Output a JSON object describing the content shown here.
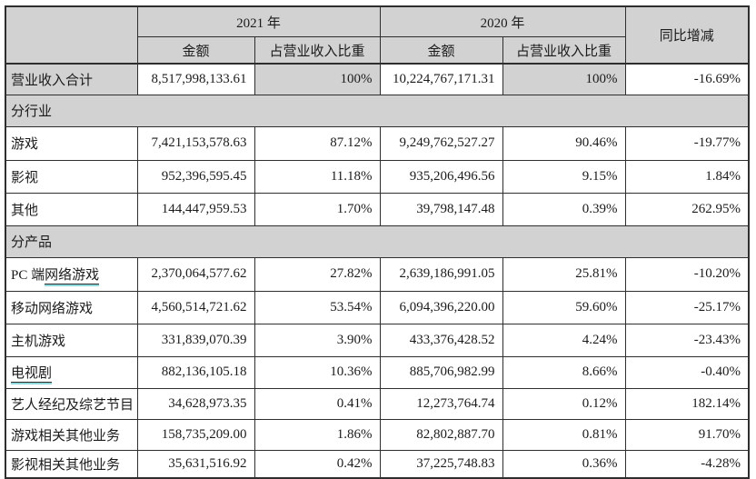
{
  "colors": {
    "shade": "#d2d2d2",
    "border": "#2e2e2e",
    "text": "#1b1b1b",
    "teal": "#8fd8dc"
  },
  "table": {
    "header": {
      "col_2021": "2021 年",
      "col_2020": "2020 年",
      "col_yoy": "同比增减",
      "sub_amount_2021": "金额",
      "sub_share_2021": "占营业收入比重",
      "sub_amount_2020": "金额",
      "sub_share_2020": "占营业收入比重"
    },
    "rows": [
      {
        "kind": "total",
        "label": "营业收入合计",
        "amount_2021": "8,517,998,133.61",
        "share_2021": "100%",
        "amount_2020": "10,224,767,171.31",
        "share_2020": "100%",
        "yoy": "-16.69%"
      },
      {
        "kind": "section",
        "label": "分行业"
      },
      {
        "kind": "data",
        "label": "游戏",
        "amount_2021": "7,421,153,578.63",
        "share_2021": "87.12%",
        "amount_2020": "9,249,762,527.27",
        "share_2020": "90.46%",
        "yoy": "-19.77%"
      },
      {
        "kind": "data",
        "label": "影视",
        "amount_2021": "952,396,595.45",
        "share_2021": "11.18%",
        "amount_2020": "935,206,496.56",
        "share_2020": "9.15%",
        "yoy": "1.84%"
      },
      {
        "kind": "data",
        "label": "其他",
        "amount_2021": "144,447,959.53",
        "share_2021": "1.70%",
        "amount_2020": "39,798,147.48",
        "share_2020": "0.39%",
        "yoy": "262.95%"
      },
      {
        "kind": "section",
        "label": "分产品"
      },
      {
        "kind": "data",
        "label": "PC 端网络游戏",
        "label_prefix": "PC 端",
        "label_underline": "网络游戏",
        "amount_2021": "2,370,064,577.62",
        "share_2021": "27.82%",
        "amount_2020": "2,639,186,991.05",
        "share_2020": "25.81%",
        "yoy": "-10.20%"
      },
      {
        "kind": "data",
        "label": "移动网络游戏",
        "amount_2021": "4,560,514,721.62",
        "share_2021": "53.54%",
        "amount_2020": "6,094,396,220.00",
        "share_2020": "59.60%",
        "yoy": "-25.17%"
      },
      {
        "kind": "data",
        "label": "主机游戏",
        "amount_2021": "331,839,070.39",
        "share_2021": "3.90%",
        "amount_2020": "433,376,428.52",
        "share_2020": "4.24%",
        "yoy": "-23.43%"
      },
      {
        "kind": "data",
        "label": "电视剧",
        "label_prefix": "",
        "label_underline": "电视剧",
        "amount_2021": "882,136,105.18",
        "share_2021": "10.36%",
        "amount_2020": "885,706,982.99",
        "share_2020": "8.66%",
        "yoy": "-0.40%"
      },
      {
        "kind": "data",
        "label": "艺人经纪及综艺节目",
        "amount_2021": "34,628,973.35",
        "share_2021": "0.41%",
        "amount_2020": "12,273,764.74",
        "share_2020": "0.12%",
        "yoy": "182.14%"
      },
      {
        "kind": "data",
        "label": "游戏相关其他业务",
        "amount_2021": "158,735,209.00",
        "share_2021": "1.86%",
        "amount_2020": "82,802,887.70",
        "share_2020": "0.81%",
        "yoy": "91.70%"
      },
      {
        "kind": "data",
        "label": "影视相关其他业务",
        "amount_2021": "35,631,516.92",
        "share_2021": "0.42%",
        "amount_2020": "37,225,748.83",
        "share_2020": "0.36%",
        "yoy": "-4.28%"
      }
    ]
  }
}
